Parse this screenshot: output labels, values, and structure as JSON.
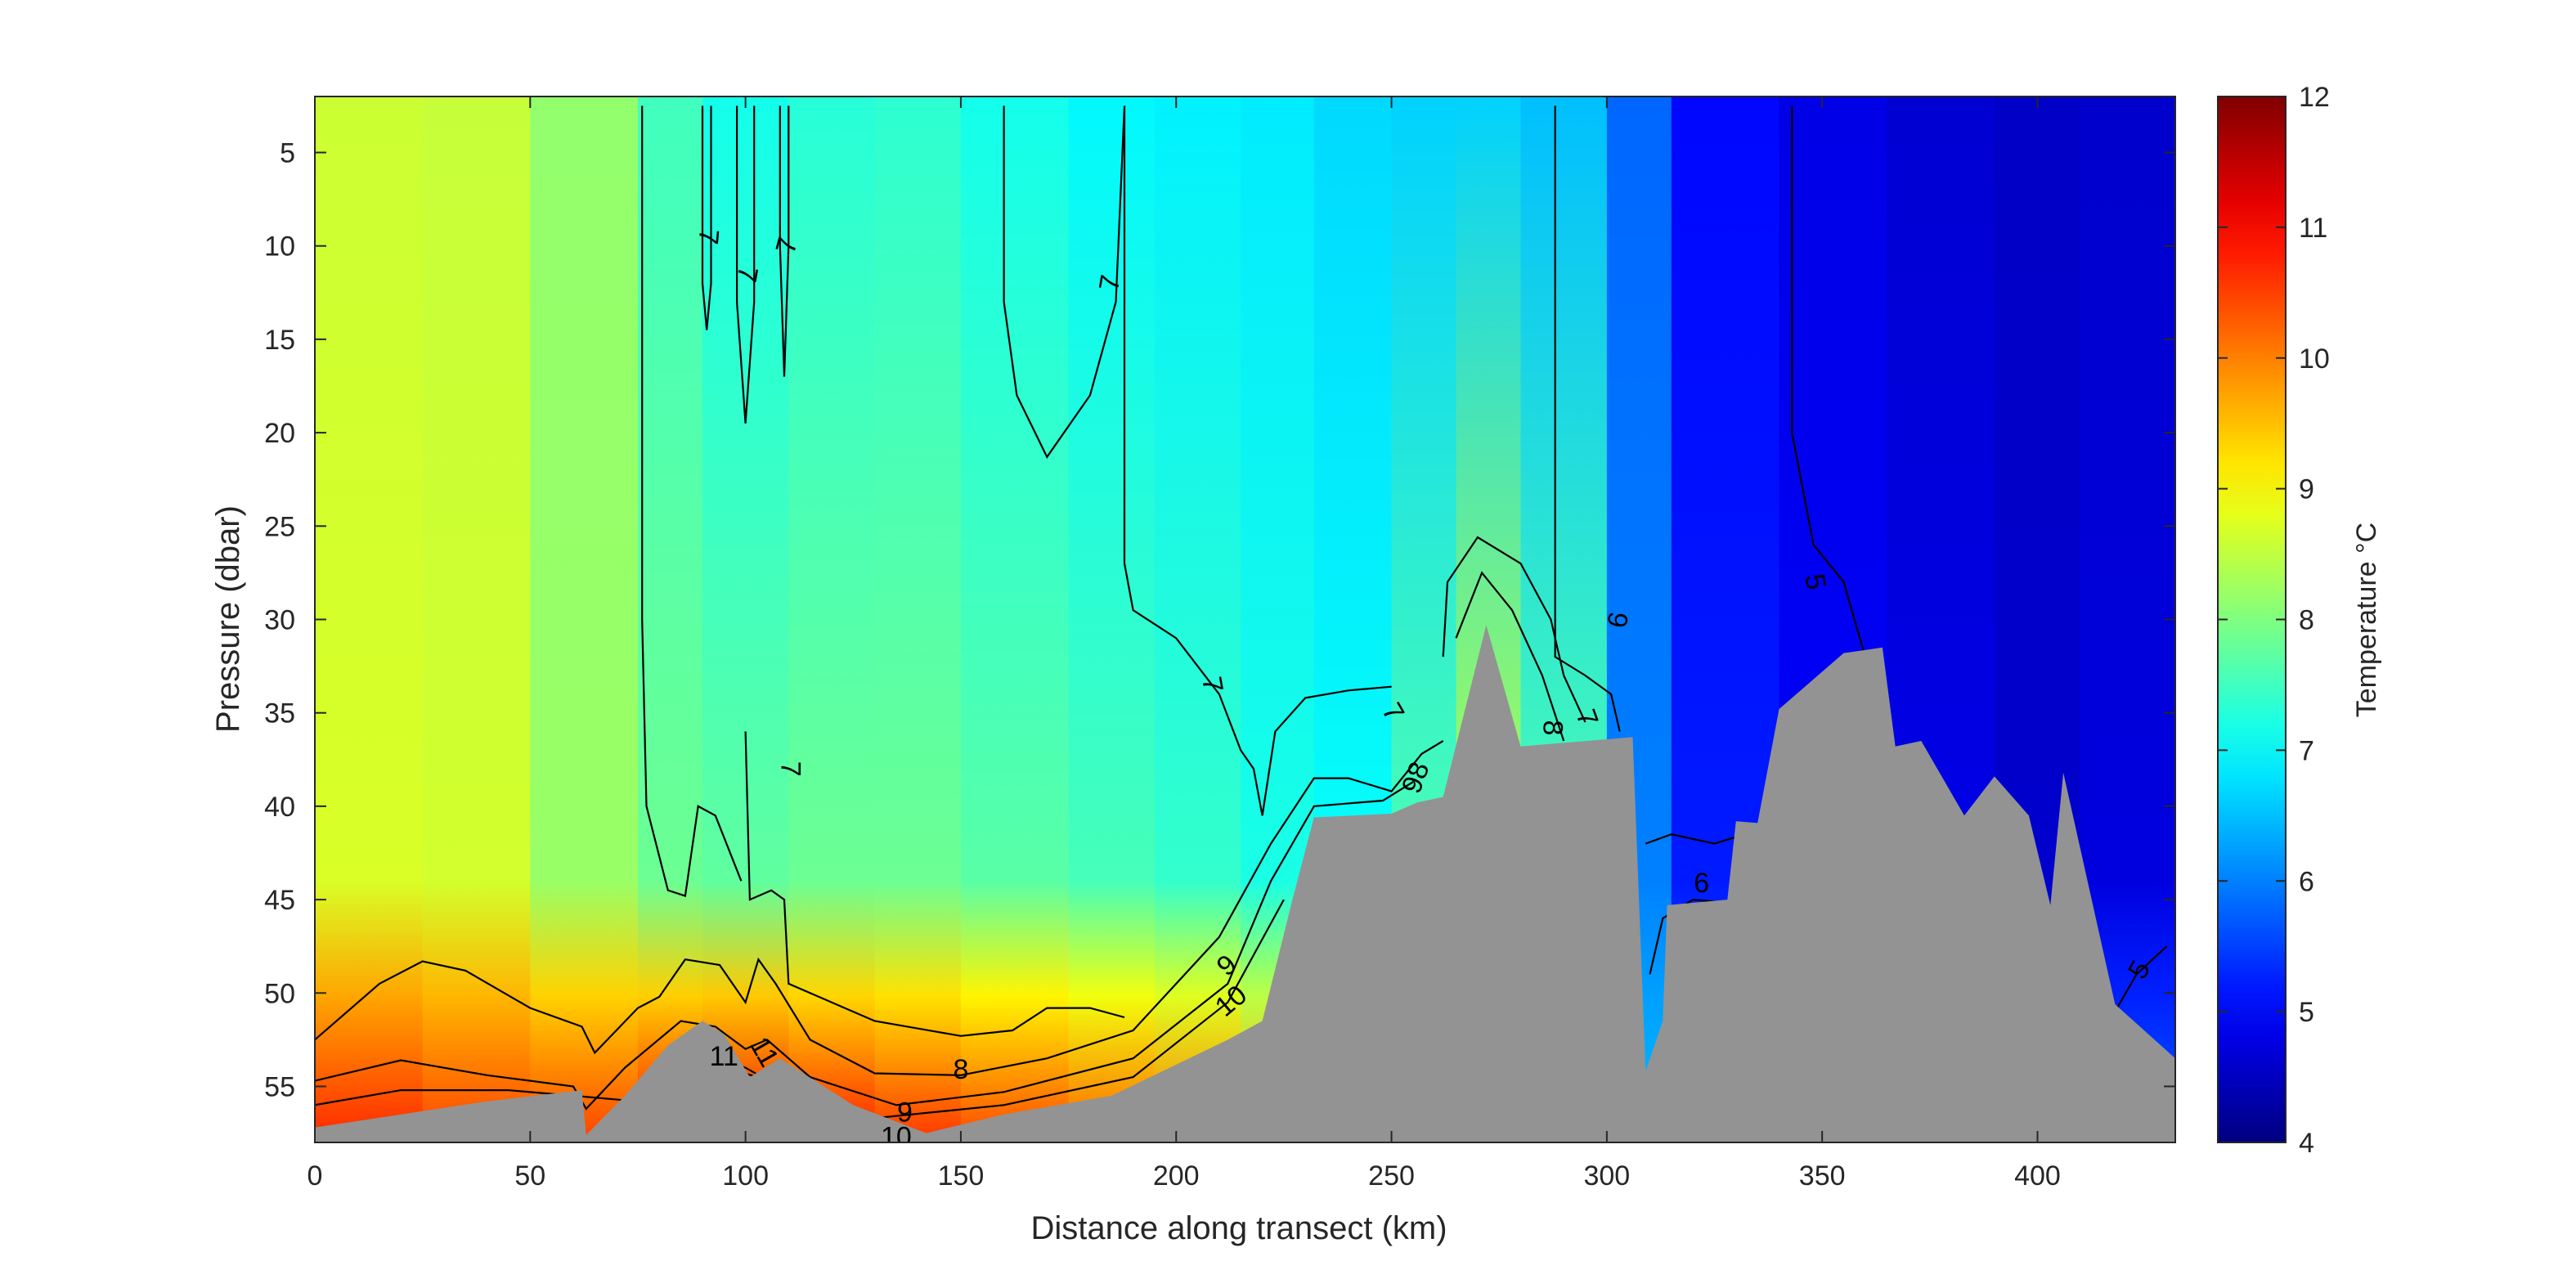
{
  "chart_data": {
    "type": "heatmap",
    "title": "",
    "xlabel": "Distance along transect (km)",
    "ylabel": "Pressure (dbar)",
    "colorbar_label": "Temperature °C",
    "xlim": [
      0,
      432
    ],
    "ylim": [
      58,
      2
    ],
    "y_reversed": true,
    "clim": [
      4,
      12
    ],
    "x_ticks": [
      0,
      50,
      100,
      150,
      200,
      250,
      300,
      350,
      400
    ],
    "y_ticks": [
      5,
      10,
      15,
      20,
      25,
      30,
      35,
      40,
      45,
      50,
      55
    ],
    "colorbar_ticks": [
      4,
      5,
      6,
      7,
      8,
      9,
      10,
      11,
      12
    ],
    "colormap": "jet",
    "bottom_mask_color": "#939393",
    "temperature_field": {
      "x": [
        0,
        25,
        50,
        75,
        90,
        110,
        130,
        150,
        175,
        195,
        215,
        232,
        250,
        265,
        280,
        300,
        315,
        340,
        365,
        390,
        410,
        432
      ],
      "surface": [
        8.5,
        8.7,
        8.4,
        7.9,
        7.1,
        7.2,
        7.4,
        7.3,
        7.0,
        6.9,
        6.9,
        6.8,
        6.6,
        6.7,
        6.6,
        6.4,
        5.2,
        4.9,
        4.7,
        4.6,
        4.5,
        4.7
      ],
      "mid": [
        8.5,
        8.9,
        8.4,
        8.0,
        7.7,
        7.8,
        7.9,
        7.8,
        7.6,
        7.5,
        7.3,
        7.1,
        7.0,
        8.2,
        8.6,
        6.6,
        5.4,
        5.0,
        4.9,
        4.7,
        4.5,
        5.0
      ],
      "bottom": [
        10.8,
        10.6,
        10.4,
        10.6,
        11.2,
        11.0,
        10.6,
        10.6,
        10.3,
        10.2,
        10.0,
        9.5,
        9.6,
        9.2,
        8.6,
        7.0,
        6.0,
        5.6,
        5.3,
        5.1,
        5.0,
        6.5
      ]
    },
    "seafloor": [
      [
        0,
        57.2
      ],
      [
        20,
        56.5
      ],
      [
        40,
        55.8
      ],
      [
        62,
        55.2
      ],
      [
        63,
        57.6
      ],
      [
        72,
        55.5
      ],
      [
        82,
        52.8
      ],
      [
        90,
        51.5
      ],
      [
        95,
        52.2
      ],
      [
        101,
        54.5
      ],
      [
        108,
        53.5
      ],
      [
        125,
        56.0
      ],
      [
        142,
        57.5
      ],
      [
        160,
        56.5
      ],
      [
        185,
        55.5
      ],
      [
        212,
        52.5
      ],
      [
        220,
        51.5
      ],
      [
        227,
        45.0
      ],
      [
        232,
        40.6
      ],
      [
        250,
        40.4
      ],
      [
        256,
        39.8
      ],
      [
        262,
        39.5
      ],
      [
        272,
        30.3
      ],
      [
        280,
        36.8
      ],
      [
        306,
        36.3
      ],
      [
        309,
        54.2
      ],
      [
        313,
        51.5
      ],
      [
        314,
        45.3
      ],
      [
        328,
        45.0
      ],
      [
        330,
        40.8
      ],
      [
        335,
        40.9
      ],
      [
        340,
        34.8
      ],
      [
        355,
        31.8
      ],
      [
        364,
        31.5
      ],
      [
        367,
        36.8
      ],
      [
        373,
        36.5
      ],
      [
        383,
        40.5
      ],
      [
        390,
        38.4
      ],
      [
        398,
        40.5
      ],
      [
        403,
        45.3
      ],
      [
        406,
        38.2
      ],
      [
        418,
        50.6
      ],
      [
        432,
        53.5
      ]
    ],
    "contours": [
      {
        "level": 7,
        "points": [
          [
            76,
            2.5
          ],
          [
            76,
            30
          ],
          [
            77,
            40
          ],
          [
            82,
            44.5
          ],
          [
            86,
            44.8
          ],
          [
            89,
            40
          ],
          [
            93,
            40.5
          ],
          [
            99,
            44
          ]
        ]
      },
      {
        "level": 7,
        "points": [
          [
            90,
            2.5
          ],
          [
            90,
            12
          ],
          [
            91,
            14.5
          ],
          [
            92,
            12
          ],
          [
            92,
            2.5
          ]
        ]
      },
      {
        "level": 7,
        "points": [
          [
            98,
            2.5
          ],
          [
            98,
            13
          ],
          [
            100,
            19.5
          ],
          [
            102,
            13
          ],
          [
            102,
            2.5
          ]
        ]
      },
      {
        "level": 7,
        "points": [
          [
            100,
            36
          ],
          [
            101,
            45
          ],
          [
            106,
            44.5
          ],
          [
            109,
            45
          ],
          [
            110,
            49.5
          ],
          [
            130,
            51.5
          ],
          [
            150,
            52.3
          ],
          [
            162,
            52
          ],
          [
            170,
            50.8
          ],
          [
            180,
            50.8
          ],
          [
            188,
            51.3
          ]
        ]
      },
      {
        "level": 7,
        "points": [
          [
            108,
            2.5
          ],
          [
            108,
            10
          ],
          [
            109,
            17
          ],
          [
            110,
            10
          ],
          [
            110,
            2.5
          ]
        ]
      },
      {
        "level": 7,
        "points": [
          [
            160,
            2.5
          ],
          [
            160,
            13
          ],
          [
            163,
            18
          ],
          [
            170,
            21.3
          ],
          [
            180,
            18
          ],
          [
            186,
            13
          ],
          [
            188,
            2.5
          ]
        ]
      },
      {
        "level": 7,
        "points": [
          [
            188,
            2.5
          ],
          [
            188,
            27
          ],
          [
            190,
            29.5
          ],
          [
            200,
            31
          ],
          [
            210,
            34
          ],
          [
            215,
            37
          ],
          [
            218,
            38
          ],
          [
            220,
            40.5
          ],
          [
            223,
            36
          ],
          [
            230,
            34.2
          ],
          [
            240,
            33.8
          ],
          [
            250,
            33.6
          ]
        ]
      },
      {
        "level": 7,
        "points": [
          [
            262,
            32
          ],
          [
            263,
            28
          ],
          [
            270,
            25.6
          ],
          [
            280,
            27
          ],
          [
            287,
            30
          ],
          [
            290,
            33
          ],
          [
            295,
            35.5
          ]
        ]
      },
      {
        "level": 6,
        "points": [
          [
            288,
            2.5
          ],
          [
            288,
            32
          ],
          [
            295,
            33
          ],
          [
            301,
            34
          ],
          [
            303,
            36
          ]
        ]
      },
      {
        "level": 5,
        "points": [
          [
            343,
            2.5
          ],
          [
            343,
            20
          ],
          [
            348,
            26
          ],
          [
            355,
            28
          ],
          [
            360,
            32
          ]
        ]
      },
      {
        "level": 5,
        "points": [
          [
            418,
            51
          ],
          [
            423,
            49
          ],
          [
            430,
            47.5
          ]
        ]
      },
      {
        "level": 8,
        "points": [
          [
            0,
            52.5
          ],
          [
            15,
            49.5
          ],
          [
            25,
            48.3
          ],
          [
            35,
            48.8
          ],
          [
            50,
            50.8
          ],
          [
            62,
            51.8
          ],
          [
            65,
            53.2
          ],
          [
            75,
            50.8
          ],
          [
            80,
            50.2
          ],
          [
            86,
            48.2
          ],
          [
            94,
            48.5
          ],
          [
            100,
            50.5
          ],
          [
            103,
            48.2
          ],
          [
            107,
            49.5
          ],
          [
            115,
            52.5
          ],
          [
            130,
            54.3
          ],
          [
            150,
            54.4
          ],
          [
            170,
            53.5
          ],
          [
            190,
            52
          ],
          [
            210,
            47
          ],
          [
            222,
            42
          ],
          [
            232,
            38.5
          ],
          [
            240,
            38.5
          ],
          [
            250,
            39.2
          ],
          [
            257,
            37.2
          ],
          [
            262,
            36.5
          ]
        ]
      },
      {
        "level": 8,
        "points": [
          [
            265,
            31
          ],
          [
            271,
            27.5
          ],
          [
            278,
            29.5
          ],
          [
            285,
            33
          ],
          [
            290,
            36.5
          ]
        ]
      },
      {
        "level": 9,
        "points": [
          [
            0,
            54.7
          ],
          [
            20,
            53.6
          ],
          [
            40,
            54.4
          ],
          [
            60,
            55
          ],
          [
            63,
            56.2
          ],
          [
            72,
            54
          ],
          [
            85,
            51.5
          ],
          [
            93,
            51.8
          ],
          [
            100,
            53
          ],
          [
            105,
            52.5
          ],
          [
            115,
            54.5
          ],
          [
            135,
            56
          ],
          [
            160,
            55.3
          ],
          [
            190,
            53.5
          ],
          [
            212,
            49.5
          ],
          [
            222,
            44
          ],
          [
            232,
            40
          ],
          [
            248,
            39.7
          ],
          [
            255,
            38.7
          ]
        ]
      },
      {
        "level": 10,
        "points": [
          [
            0,
            56
          ],
          [
            20,
            55.2
          ],
          [
            45,
            55.2
          ],
          [
            60,
            55.5
          ],
          [
            75,
            55.8
          ],
          [
            90,
            53.3
          ],
          [
            100,
            54
          ],
          [
            110,
            55.3
          ],
          [
            130,
            56.7
          ],
          [
            160,
            56
          ],
          [
            190,
            54.5
          ],
          [
            212,
            50.5
          ],
          [
            225,
            45
          ]
        ]
      },
      {
        "level": 11,
        "points": [
          [
            88,
            53.8
          ],
          [
            92,
            53.5
          ],
          [
            98,
            54.2
          ],
          [
            103,
            54.5
          ]
        ]
      },
      {
        "level": 6,
        "points": [
          [
            309,
            42
          ],
          [
            315,
            41.5
          ],
          [
            325,
            42
          ],
          [
            332,
            41.5
          ]
        ]
      },
      {
        "level": 6,
        "points": [
          [
            310,
            49
          ],
          [
            313,
            46
          ],
          [
            320,
            45
          ],
          [
            330,
            45.2
          ]
        ]
      }
    ],
    "contour_labels": [
      {
        "text": "7",
        "x": 91,
        "y": 9.5,
        "angle": 95
      },
      {
        "text": "7",
        "x": 100,
        "y": 11.5,
        "angle": 100
      },
      {
        "text": "7",
        "x": 110,
        "y": 10,
        "angle": -75
      },
      {
        "text": "7",
        "x": 110,
        "y": 38,
        "angle": 90
      },
      {
        "text": "7",
        "x": 185,
        "y": 12,
        "angle": -80
      },
      {
        "text": "7",
        "x": 208,
        "y": 33.5,
        "angle": 80
      },
      {
        "text": "7",
        "x": 250,
        "y": 35,
        "angle": 60
      },
      {
        "text": "7",
        "x": 295,
        "y": 35.3,
        "angle": 70
      },
      {
        "text": "9",
        "x": 302,
        "y": 30,
        "angle": 100
      },
      {
        "text": "8",
        "x": 287,
        "y": 35.8,
        "angle": 90
      },
      {
        "text": "5",
        "x": 348,
        "y": 28,
        "angle": 80
      },
      {
        "text": "98",
        "x": 256,
        "y": 38.5,
        "angle": -70
      },
      {
        "text": "9",
        "x": 212,
        "y": 48.6,
        "angle": -40
      },
      {
        "text": "10",
        "x": 213,
        "y": 50.5,
        "angle": -40
      },
      {
        "text": "11",
        "x": 95,
        "y": 53.5,
        "angle": 0
      },
      {
        "text": "11",
        "x": 104,
        "y": 53.2,
        "angle": 60
      },
      {
        "text": "8",
        "x": 150,
        "y": 54.2,
        "angle": 0
      },
      {
        "text": "9",
        "x": 137,
        "y": 56.5,
        "angle": 0
      },
      {
        "text": "10",
        "x": 135,
        "y": 57.8,
        "angle": 0
      },
      {
        "text": "6",
        "x": 322,
        "y": 44.2,
        "angle": 0
      },
      {
        "text": "5",
        "x": 424,
        "y": 48.8,
        "angle": -60
      }
    ]
  }
}
